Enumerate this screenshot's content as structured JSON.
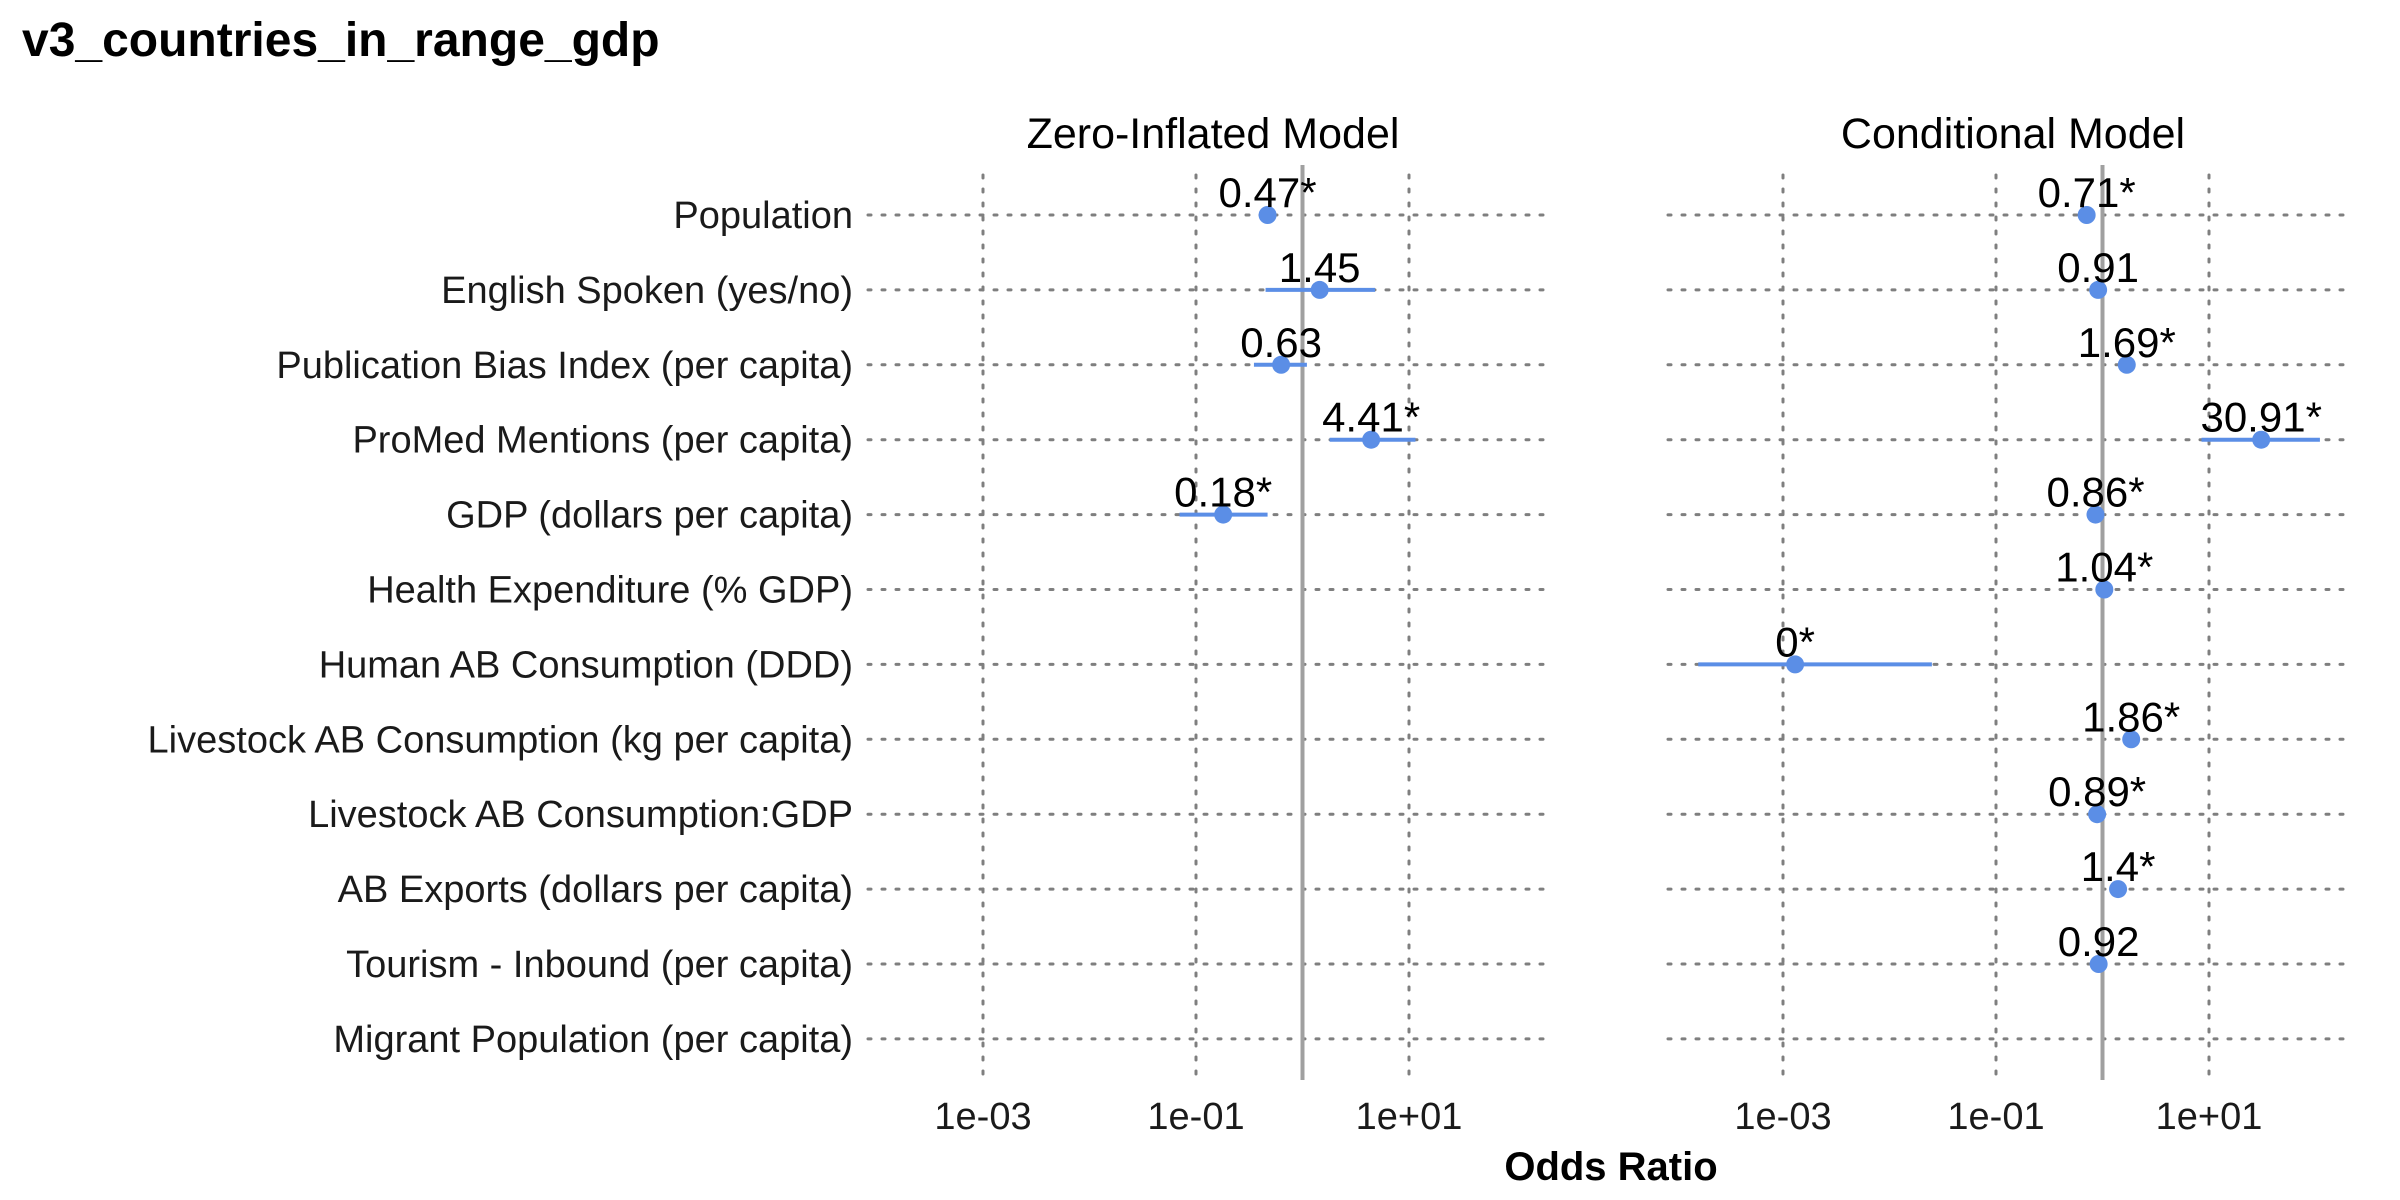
{
  "chart_data": {
    "type": "scatter",
    "subtype": "forest-plot",
    "title": "v3_countries_in_range_gdp",
    "xlabel": "Odds Ratio",
    "x_scale": "log10",
    "xlim": [
      0.0001,
      1000
    ],
    "x_ticks": [
      {
        "value": 0.001,
        "label": "1e-03"
      },
      {
        "value": 0.1,
        "label": "1e-01"
      },
      {
        "value": 10,
        "label": "1e+01"
      }
    ],
    "reference_line": 1,
    "grid": "dotted",
    "color": "#5b8ee6",
    "labels": [
      "Population",
      "English Spoken (yes/no)",
      "Publication Bias Index (per capita)",
      "ProMed Mentions (per capita)",
      "GDP (dollars per capita)",
      "Health Expenditure (% GDP)",
      "Human AB Consumption (DDD)",
      "Livestock AB Consumption (kg per capita)",
      "Livestock AB Consumption:GDP",
      "AB Exports (dollars per capita)",
      "Tourism - Inbound (per capita)",
      "Migrant Population (per capita)"
    ],
    "panels": [
      {
        "name": "Zero-Inflated Model",
        "points": [
          {
            "row": 0,
            "estimate": 0.47,
            "low": 0.42,
            "high": 0.53,
            "label": "0.47*"
          },
          {
            "row": 1,
            "estimate": 1.45,
            "low": 0.45,
            "high": 4.8,
            "label": "1.45"
          },
          {
            "row": 2,
            "estimate": 0.63,
            "low": 0.35,
            "high": 1.1,
            "label": "0.63"
          },
          {
            "row": 3,
            "estimate": 4.41,
            "low": 1.8,
            "high": 11.5,
            "label": "4.41*"
          },
          {
            "row": 4,
            "estimate": 0.18,
            "low": 0.07,
            "high": 0.47,
            "label": "0.18*"
          }
        ]
      },
      {
        "name": "Conditional Model",
        "points": [
          {
            "row": 0,
            "estimate": 0.71,
            "low": 0.64,
            "high": 0.79,
            "label": "0.71*"
          },
          {
            "row": 1,
            "estimate": 0.91,
            "low": 0.85,
            "high": 0.97,
            "label": "0.91"
          },
          {
            "row": 2,
            "estimate": 1.69,
            "low": 1.52,
            "high": 1.87,
            "label": "1.69*"
          },
          {
            "row": 3,
            "estimate": 30.91,
            "low": 8.5,
            "high": 110,
            "label": "30.91*"
          },
          {
            "row": 4,
            "estimate": 0.86,
            "low": 0.8,
            "high": 0.92,
            "label": "0.86*"
          },
          {
            "row": 5,
            "estimate": 1.04,
            "low": 1.01,
            "high": 1.07,
            "label": "1.04*"
          },
          {
            "row": 6,
            "estimate": 0.0013,
            "low": 0.00016,
            "high": 0.025,
            "label": "0*"
          },
          {
            "row": 7,
            "estimate": 1.86,
            "low": 1.7,
            "high": 2.03,
            "label": "1.86*"
          },
          {
            "row": 8,
            "estimate": 0.89,
            "low": 0.85,
            "high": 0.93,
            "label": "0.89*"
          },
          {
            "row": 9,
            "estimate": 1.4,
            "low": 1.3,
            "high": 1.5,
            "label": "1.4*"
          },
          {
            "row": 10,
            "estimate": 0.92,
            "low": 0.86,
            "high": 0.98,
            "label": "0.92"
          }
        ]
      }
    ]
  }
}
